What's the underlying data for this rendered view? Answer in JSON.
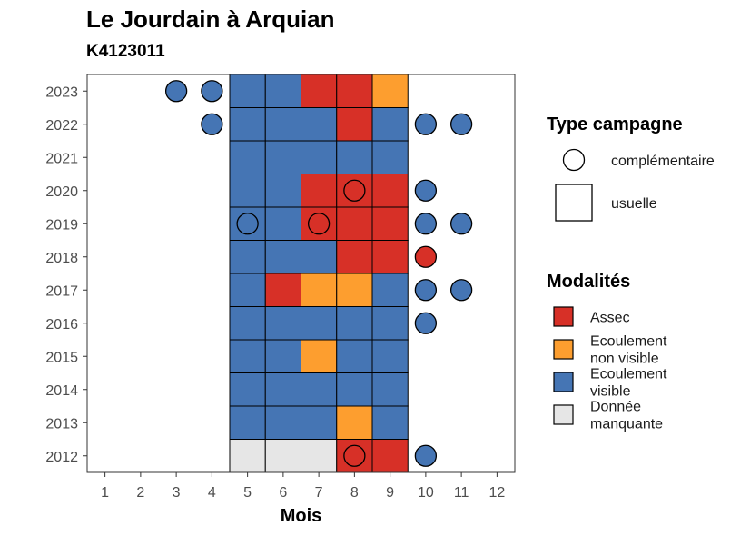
{
  "title": "Le Jourdain à Arquian",
  "subtitle": "K4123011",
  "chart_data": {
    "type": "heatmap",
    "xlabel": "Mois",
    "ylabel": "",
    "x_ticks": [
      1,
      2,
      3,
      4,
      5,
      6,
      7,
      8,
      9,
      10,
      11,
      12
    ],
    "y_ticks": [
      2012,
      2013,
      2014,
      2015,
      2016,
      2017,
      2018,
      2019,
      2020,
      2021,
      2022,
      2023
    ],
    "xlim": [
      0.5,
      12.5
    ],
    "ylim": [
      2011.5,
      2023.5
    ],
    "grid": false,
    "colors": {
      "Assec": "#d73027",
      "Ecoulement non visible": "#fd9e2f",
      "Ecoulement visible": "#4575b4",
      "Donnée manquante": "#e6e6e6"
    },
    "cells": [
      {
        "year": 2023,
        "month": 5,
        "modalite": "Ecoulement visible",
        "type": "usuelle"
      },
      {
        "year": 2023,
        "month": 6,
        "modalite": "Ecoulement visible",
        "type": "usuelle"
      },
      {
        "year": 2023,
        "month": 7,
        "modalite": "Assec",
        "type": "usuelle"
      },
      {
        "year": 2023,
        "month": 8,
        "modalite": "Assec",
        "type": "usuelle"
      },
      {
        "year": 2023,
        "month": 9,
        "modalite": "Ecoulement non visible",
        "type": "usuelle"
      },
      {
        "year": 2022,
        "month": 5,
        "modalite": "Ecoulement visible",
        "type": "usuelle"
      },
      {
        "year": 2022,
        "month": 6,
        "modalite": "Ecoulement visible",
        "type": "usuelle"
      },
      {
        "year": 2022,
        "month": 7,
        "modalite": "Ecoulement visible",
        "type": "usuelle"
      },
      {
        "year": 2022,
        "month": 8,
        "modalite": "Assec",
        "type": "usuelle"
      },
      {
        "year": 2022,
        "month": 9,
        "modalite": "Ecoulement visible",
        "type": "usuelle"
      },
      {
        "year": 2021,
        "month": 5,
        "modalite": "Ecoulement visible",
        "type": "usuelle"
      },
      {
        "year": 2021,
        "month": 6,
        "modalite": "Ecoulement visible",
        "type": "usuelle"
      },
      {
        "year": 2021,
        "month": 7,
        "modalite": "Ecoulement visible",
        "type": "usuelle"
      },
      {
        "year": 2021,
        "month": 8,
        "modalite": "Ecoulement visible",
        "type": "usuelle"
      },
      {
        "year": 2021,
        "month": 9,
        "modalite": "Ecoulement visible",
        "type": "usuelle"
      },
      {
        "year": 2020,
        "month": 5,
        "modalite": "Ecoulement visible",
        "type": "usuelle"
      },
      {
        "year": 2020,
        "month": 6,
        "modalite": "Ecoulement visible",
        "type": "usuelle"
      },
      {
        "year": 2020,
        "month": 7,
        "modalite": "Assec",
        "type": "usuelle"
      },
      {
        "year": 2020,
        "month": 8,
        "modalite": "Assec",
        "type": "usuelle"
      },
      {
        "year": 2020,
        "month": 9,
        "modalite": "Assec",
        "type": "usuelle"
      },
      {
        "year": 2019,
        "month": 5,
        "modalite": "Ecoulement visible",
        "type": "usuelle"
      },
      {
        "year": 2019,
        "month": 6,
        "modalite": "Ecoulement visible",
        "type": "usuelle"
      },
      {
        "year": 2019,
        "month": 7,
        "modalite": "Assec",
        "type": "usuelle"
      },
      {
        "year": 2019,
        "month": 8,
        "modalite": "Assec",
        "type": "usuelle"
      },
      {
        "year": 2019,
        "month": 9,
        "modalite": "Assec",
        "type": "usuelle"
      },
      {
        "year": 2018,
        "month": 5,
        "modalite": "Ecoulement visible",
        "type": "usuelle"
      },
      {
        "year": 2018,
        "month": 6,
        "modalite": "Ecoulement visible",
        "type": "usuelle"
      },
      {
        "year": 2018,
        "month": 7,
        "modalite": "Ecoulement visible",
        "type": "usuelle"
      },
      {
        "year": 2018,
        "month": 8,
        "modalite": "Assec",
        "type": "usuelle"
      },
      {
        "year": 2018,
        "month": 9,
        "modalite": "Assec",
        "type": "usuelle"
      },
      {
        "year": 2017,
        "month": 5,
        "modalite": "Ecoulement visible",
        "type": "usuelle"
      },
      {
        "year": 2017,
        "month": 6,
        "modalite": "Assec",
        "type": "usuelle"
      },
      {
        "year": 2017,
        "month": 7,
        "modalite": "Ecoulement non visible",
        "type": "usuelle"
      },
      {
        "year": 2017,
        "month": 8,
        "modalite": "Ecoulement non visible",
        "type": "usuelle"
      },
      {
        "year": 2017,
        "month": 9,
        "modalite": "Ecoulement visible",
        "type": "usuelle"
      },
      {
        "year": 2016,
        "month": 5,
        "modalite": "Ecoulement visible",
        "type": "usuelle"
      },
      {
        "year": 2016,
        "month": 6,
        "modalite": "Ecoulement visible",
        "type": "usuelle"
      },
      {
        "year": 2016,
        "month": 7,
        "modalite": "Ecoulement visible",
        "type": "usuelle"
      },
      {
        "year": 2016,
        "month": 8,
        "modalite": "Ecoulement visible",
        "type": "usuelle"
      },
      {
        "year": 2016,
        "month": 9,
        "modalite": "Ecoulement visible",
        "type": "usuelle"
      },
      {
        "year": 2015,
        "month": 5,
        "modalite": "Ecoulement visible",
        "type": "usuelle"
      },
      {
        "year": 2015,
        "month": 6,
        "modalite": "Ecoulement visible",
        "type": "usuelle"
      },
      {
        "year": 2015,
        "month": 7,
        "modalite": "Ecoulement non visible",
        "type": "usuelle"
      },
      {
        "year": 2015,
        "month": 8,
        "modalite": "Ecoulement visible",
        "type": "usuelle"
      },
      {
        "year": 2015,
        "month": 9,
        "modalite": "Ecoulement visible",
        "type": "usuelle"
      },
      {
        "year": 2014,
        "month": 5,
        "modalite": "Ecoulement visible",
        "type": "usuelle"
      },
      {
        "year": 2014,
        "month": 6,
        "modalite": "Ecoulement visible",
        "type": "usuelle"
      },
      {
        "year": 2014,
        "month": 7,
        "modalite": "Ecoulement visible",
        "type": "usuelle"
      },
      {
        "year": 2014,
        "month": 8,
        "modalite": "Ecoulement visible",
        "type": "usuelle"
      },
      {
        "year": 2014,
        "month": 9,
        "modalite": "Ecoulement visible",
        "type": "usuelle"
      },
      {
        "year": 2013,
        "month": 5,
        "modalite": "Ecoulement visible",
        "type": "usuelle"
      },
      {
        "year": 2013,
        "month": 6,
        "modalite": "Ecoulement visible",
        "type": "usuelle"
      },
      {
        "year": 2013,
        "month": 7,
        "modalite": "Ecoulement visible",
        "type": "usuelle"
      },
      {
        "year": 2013,
        "month": 8,
        "modalite": "Ecoulement non visible",
        "type": "usuelle"
      },
      {
        "year": 2013,
        "month": 9,
        "modalite": "Ecoulement visible",
        "type": "usuelle"
      },
      {
        "year": 2012,
        "month": 5,
        "modalite": "Donnée manquante",
        "type": "usuelle"
      },
      {
        "year": 2012,
        "month": 6,
        "modalite": "Donnée manquante",
        "type": "usuelle"
      },
      {
        "year": 2012,
        "month": 7,
        "modalite": "Donnée manquante",
        "type": "usuelle"
      },
      {
        "year": 2012,
        "month": 8,
        "modalite": "Assec",
        "type": "usuelle"
      },
      {
        "year": 2012,
        "month": 9,
        "modalite": "Assec",
        "type": "usuelle"
      },
      {
        "year": 2023,
        "month": 3,
        "modalite": "Ecoulement visible",
        "type": "complémentaire"
      },
      {
        "year": 2023,
        "month": 4,
        "modalite": "Ecoulement visible",
        "type": "complémentaire"
      },
      {
        "year": 2022,
        "month": 4,
        "modalite": "Ecoulement visible",
        "type": "complémentaire"
      },
      {
        "year": 2022,
        "month": 10,
        "modalite": "Ecoulement visible",
        "type": "complémentaire"
      },
      {
        "year": 2022,
        "month": 11,
        "modalite": "Ecoulement visible",
        "type": "complémentaire"
      },
      {
        "year": 2020,
        "month": 8,
        "modalite": "Assec",
        "type": "complémentaire"
      },
      {
        "year": 2020,
        "month": 10,
        "modalite": "Ecoulement visible",
        "type": "complémentaire"
      },
      {
        "year": 2019,
        "month": 5,
        "modalite": "Ecoulement visible",
        "type": "complémentaire"
      },
      {
        "year": 2019,
        "month": 7,
        "modalite": "Assec",
        "type": "complémentaire"
      },
      {
        "year": 2019,
        "month": 10,
        "modalite": "Ecoulement visible",
        "type": "complémentaire"
      },
      {
        "year": 2019,
        "month": 11,
        "modalite": "Ecoulement visible",
        "type": "complémentaire"
      },
      {
        "year": 2018,
        "month": 10,
        "modalite": "Assec",
        "type": "complémentaire"
      },
      {
        "year": 2017,
        "month": 10,
        "modalite": "Ecoulement visible",
        "type": "complémentaire"
      },
      {
        "year": 2017,
        "month": 11,
        "modalite": "Ecoulement visible",
        "type": "complémentaire"
      },
      {
        "year": 2016,
        "month": 10,
        "modalite": "Ecoulement visible",
        "type": "complémentaire"
      },
      {
        "year": 2012,
        "month": 8,
        "modalite": "Assec",
        "type": "complémentaire"
      },
      {
        "year": 2012,
        "month": 10,
        "modalite": "Ecoulement visible",
        "type": "complémentaire"
      }
    ],
    "legend_type": {
      "title": "Type campagne",
      "entries": [
        {
          "shape": "circle",
          "label": "complémentaire"
        },
        {
          "shape": "square",
          "label": "usuelle"
        }
      ],
      "placement": "right"
    },
    "legend_modalites": {
      "title": "Modalités",
      "entries": [
        {
          "key": "Assec",
          "lines": [
            "Assec"
          ]
        },
        {
          "key": "Ecoulement non visible",
          "lines": [
            "Ecoulement",
            "non visible"
          ]
        },
        {
          "key": "Ecoulement visible",
          "lines": [
            "Ecoulement",
            "visible"
          ]
        },
        {
          "key": "Donnée manquante",
          "lines": [
            "Donnée",
            "manquante"
          ]
        }
      ],
      "placement": "right"
    }
  }
}
